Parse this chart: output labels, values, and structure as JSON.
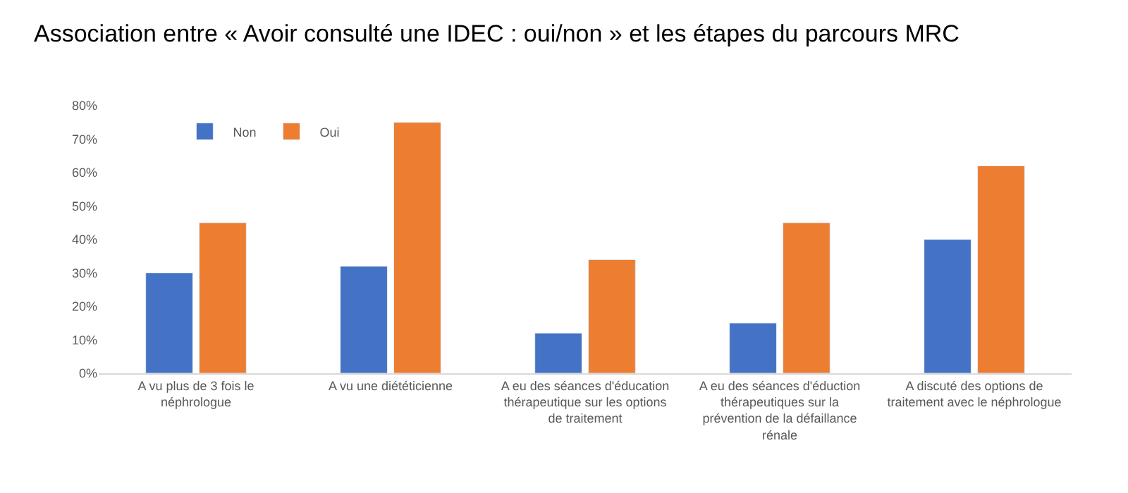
{
  "chart_data": {
    "type": "bar",
    "title": "Association entre « Avoir consulté une IDEC : oui/non » et les étapes du parcours MRC",
    "categories": [
      "A vu plus de 3 fois le néphrologue",
      "A vu une diététicienne",
      "A eu des séances d'éducation thérapeutique sur les options de traitement",
      "A eu des séances d'éduction thérapeutiques sur la prévention de la défaillance rénale",
      "A discuté des options de traitement avec le néphrologue"
    ],
    "series": [
      {
        "name": "Non",
        "color": "#4472c4",
        "values": [
          30,
          32,
          12,
          15,
          40
        ]
      },
      {
        "name": "Oui",
        "color": "#ed7d31",
        "values": [
          45,
          75,
          34,
          45,
          62
        ]
      }
    ],
    "ylim": [
      0,
      80
    ],
    "yticks": [
      {
        "value": 0,
        "label": "0%"
      },
      {
        "value": 10,
        "label": "10%"
      },
      {
        "value": 20,
        "label": "20%"
      },
      {
        "value": 30,
        "label": "30%"
      },
      {
        "value": 40,
        "label": "40%"
      },
      {
        "value": 50,
        "label": "50%"
      },
      {
        "value": 60,
        "label": "60%"
      },
      {
        "value": 70,
        "label": "70%"
      },
      {
        "value": 80,
        "label": "80%"
      }
    ],
    "grid": false,
    "legend": "top left"
  }
}
